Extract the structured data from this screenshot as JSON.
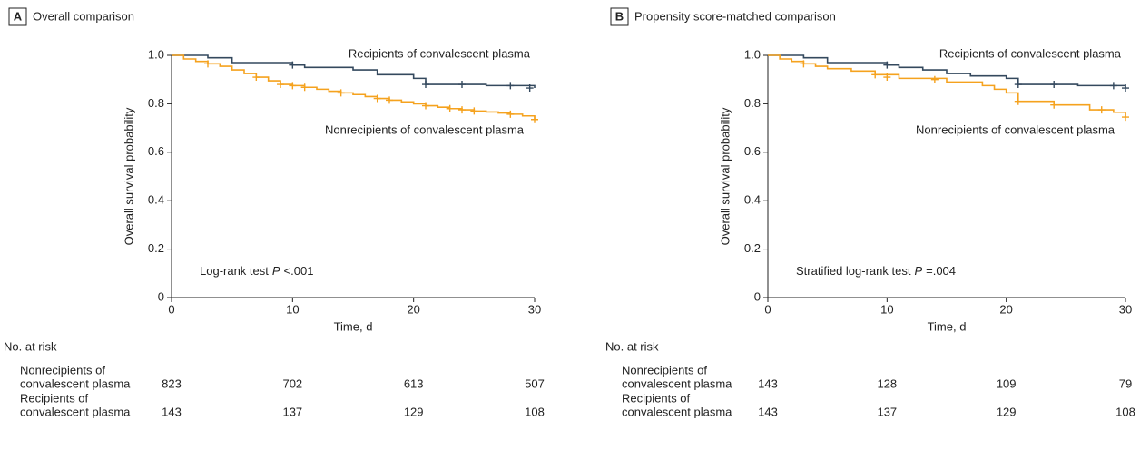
{
  "chart_data": [
    {
      "type": "line",
      "step": "post",
      "panel": "A",
      "title": "Overall comparison",
      "xlabel": "Time, d",
      "ylabel": "Overall survival probability",
      "xlim": [
        0,
        30
      ],
      "xticks": [
        0,
        10,
        20,
        30
      ],
      "ylim": [
        0,
        1
      ],
      "yticks": [
        0,
        0.2,
        0.4,
        0.6,
        0.8,
        {
          "value": 1,
          "label": "1.0"
        }
      ],
      "annotation": {
        "prefix": "Log-rank test",
        "italic": "P",
        "suffix": "<.001"
      },
      "series": [
        {
          "name": "Recipients of convalescent plasma",
          "color": "#34495e",
          "x": [
            0,
            3,
            5,
            10,
            11,
            15,
            17,
            20,
            21,
            26,
            30
          ],
          "y": [
            1,
            0.99,
            0.97,
            0.96,
            0.95,
            0.94,
            0.92,
            0.905,
            0.88,
            0.875,
            0.865
          ],
          "censored_x": [
            10,
            21,
            24,
            28,
            29.6
          ],
          "censored_y": [
            0.96,
            0.88,
            0.88,
            0.875,
            0.865
          ]
        },
        {
          "name": "Nonrecipients of convalescent plasma",
          "color": "#f5a21e",
          "x": [
            0,
            1,
            2,
            3,
            4,
            5,
            6,
            7,
            8,
            9,
            10,
            11,
            12,
            13,
            14,
            15,
            16,
            17,
            18,
            19,
            20,
            21,
            22,
            23,
            24,
            25,
            26,
            27,
            28,
            29,
            30
          ],
          "y": [
            1,
            0.985,
            0.975,
            0.965,
            0.955,
            0.94,
            0.925,
            0.91,
            0.895,
            0.88,
            0.875,
            0.868,
            0.86,
            0.852,
            0.845,
            0.838,
            0.83,
            0.822,
            0.815,
            0.808,
            0.8,
            0.792,
            0.786,
            0.78,
            0.775,
            0.77,
            0.766,
            0.762,
            0.757,
            0.75,
            0.735
          ],
          "censored_x": [
            3,
            7,
            9,
            10,
            11,
            14,
            17,
            18,
            21,
            23,
            24,
            25,
            28,
            30
          ],
          "censored_y": [
            0.965,
            0.91,
            0.88,
            0.875,
            0.868,
            0.845,
            0.822,
            0.815,
            0.792,
            0.78,
            0.775,
            0.77,
            0.757,
            0.735
          ]
        }
      ],
      "risk_table": {
        "title": "No. at risk",
        "rows": [
          {
            "label_lines": [
              "Nonrecipients of",
              "convalescent plasma"
            ],
            "values": [
              823,
              702,
              613,
              507
            ]
          },
          {
            "label_lines": [
              "Recipients of",
              "convalescent plasma"
            ],
            "values": [
              143,
              137,
              129,
              108
            ]
          }
        ]
      }
    },
    {
      "type": "line",
      "step": "post",
      "panel": "B",
      "title": "Propensity score-matched comparison",
      "xlabel": "Time, d",
      "ylabel": "Overall survival probability",
      "xlim": [
        0,
        30
      ],
      "xticks": [
        0,
        10,
        20,
        30
      ],
      "ylim": [
        0,
        1
      ],
      "yticks": [
        0,
        0.2,
        0.4,
        0.6,
        0.8,
        {
          "value": 1,
          "label": "1.0"
        }
      ],
      "annotation": {
        "prefix": "Stratified log-rank test",
        "italic": "P",
        "suffix": "=.004"
      },
      "series": [
        {
          "name": "Recipients of convalescent plasma",
          "color": "#34495e",
          "x": [
            0,
            3,
            5,
            10,
            11,
            13,
            15,
            17,
            20,
            21,
            26,
            30
          ],
          "y": [
            1,
            0.99,
            0.97,
            0.96,
            0.95,
            0.94,
            0.925,
            0.915,
            0.905,
            0.88,
            0.875,
            0.865
          ],
          "censored_x": [
            10,
            21,
            24,
            29,
            30
          ],
          "censored_y": [
            0.96,
            0.88,
            0.88,
            0.875,
            0.865
          ]
        },
        {
          "name": "Nonrecipients of convalescent plasma",
          "color": "#f5a21e",
          "x": [
            0,
            1,
            2,
            3,
            4,
            5,
            7,
            9,
            11,
            15,
            18,
            19,
            20,
            21,
            24,
            27,
            29,
            30
          ],
          "y": [
            1,
            0.985,
            0.975,
            0.965,
            0.955,
            0.945,
            0.935,
            0.92,
            0.905,
            0.89,
            0.875,
            0.86,
            0.845,
            0.81,
            0.795,
            0.775,
            0.765,
            0.745
          ],
          "censored_x": [
            3,
            9,
            10,
            14,
            21,
            24,
            28,
            30
          ],
          "censored_y": [
            0.965,
            0.92,
            0.91,
            0.9,
            0.81,
            0.795,
            0.775,
            0.745
          ]
        }
      ],
      "risk_table": {
        "title": "No. at risk",
        "rows": [
          {
            "label_lines": [
              "Nonrecipients of",
              "convalescent plasma"
            ],
            "values": [
              143,
              128,
              109,
              79
            ]
          },
          {
            "label_lines": [
              "Recipients of",
              "convalescent plasma"
            ],
            "values": [
              143,
              137,
              129,
              108
            ]
          }
        ]
      }
    }
  ]
}
